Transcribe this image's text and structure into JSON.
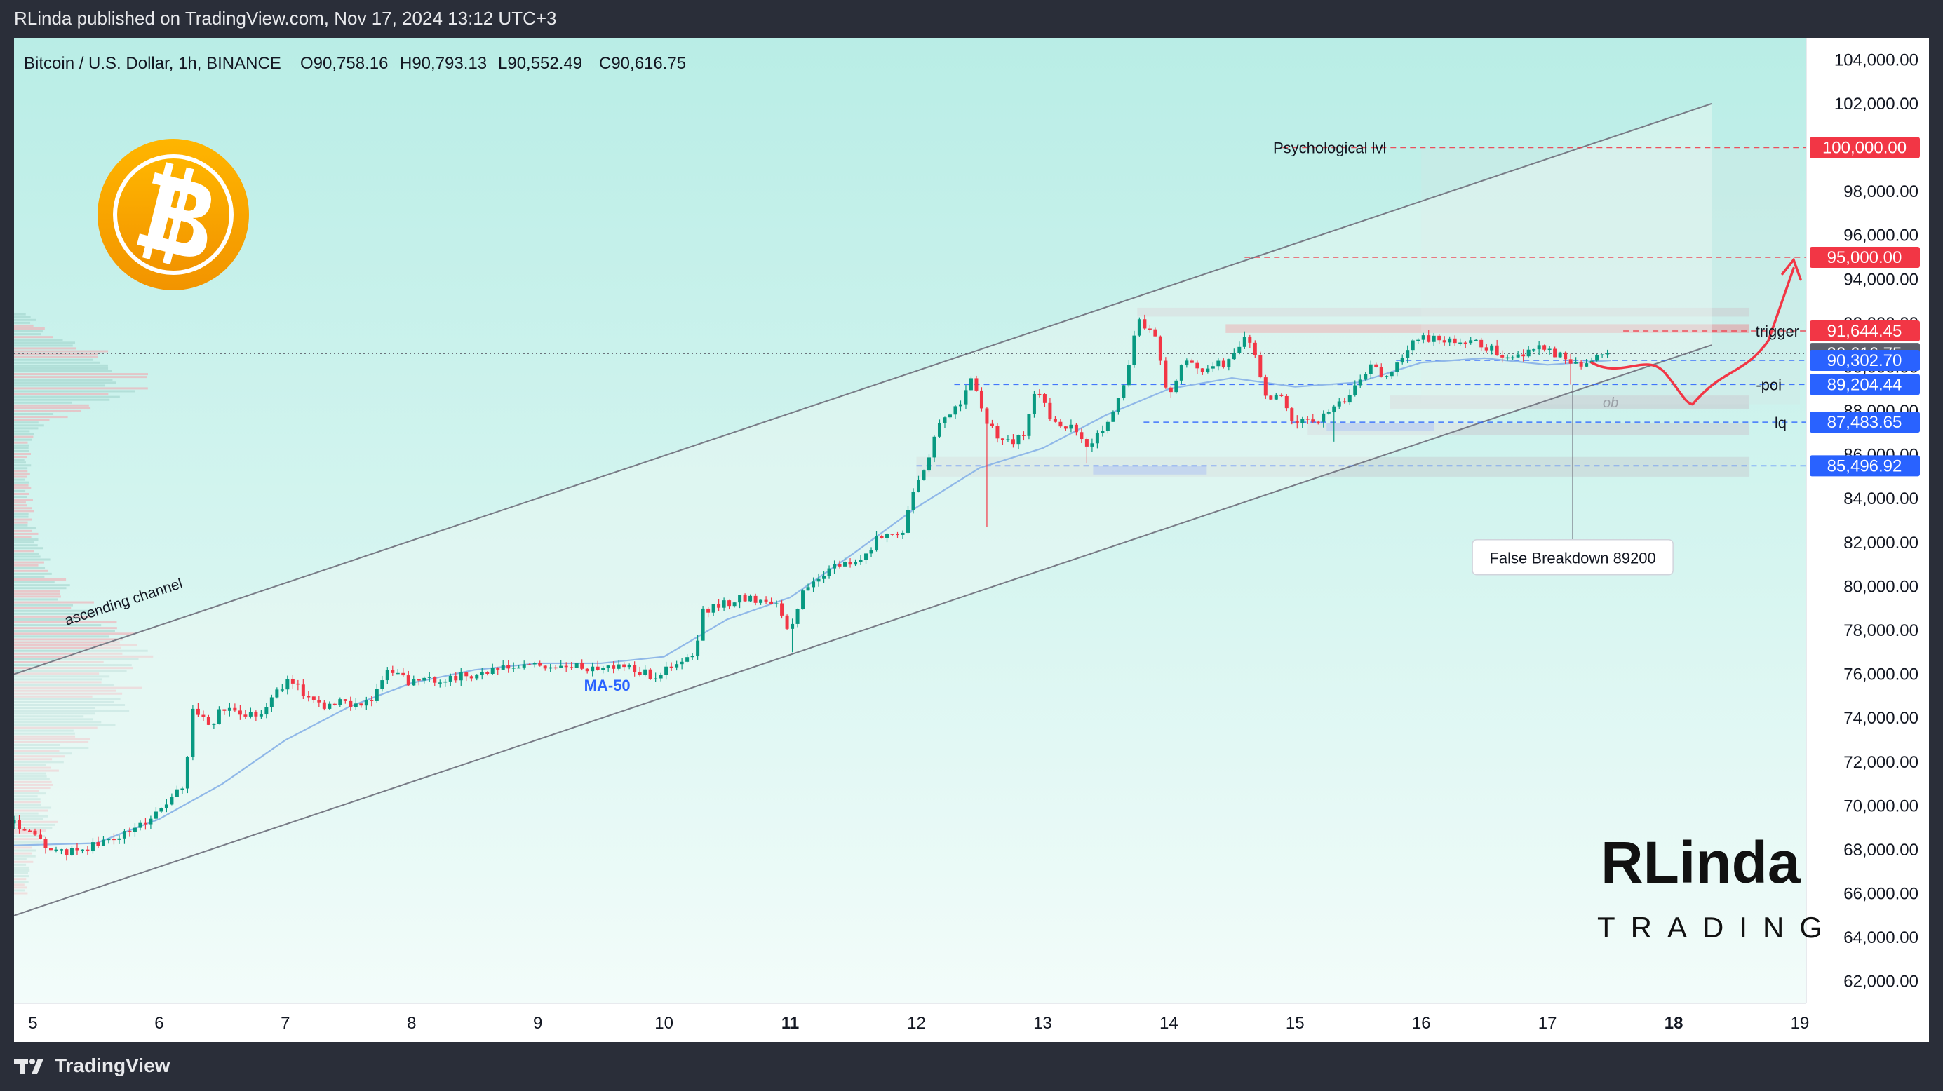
{
  "header": {
    "published": "RLinda published on TradingView.com, Nov 17, 2024 13:12 UTC+3"
  },
  "legend": {
    "symbol": "Bitcoin / U.S. Dollar, 1h, BINANCE",
    "open": "O90,758.16",
    "high": "H90,793.13",
    "low": "L90,552.49",
    "close": "C90,616.75"
  },
  "footer": {
    "brand": "TradingView"
  },
  "watermark": {
    "top": "RLinda",
    "bottom": "TRADING"
  },
  "colors": {
    "up": "#089981",
    "down": "#f23645",
    "ma": "#90b8e8",
    "red_label": "#f23645",
    "blue_label": "#2962ff",
    "gray_label": "#5d606b",
    "bg_top": "#bfeee8",
    "bg_bottom": "#f0fbf8",
    "btc_orange": "#f7a600"
  },
  "chart_data": {
    "type": "candlestick",
    "title": "Bitcoin / U.S. Dollar, 1h, BINANCE",
    "xlabel": "",
    "ylabel": "",
    "x_ticks": [
      "5",
      "6",
      "7",
      "8",
      "9",
      "10",
      "11",
      "12",
      "13",
      "14",
      "15",
      "16",
      "17",
      "18",
      "19"
    ],
    "x_ticks_bold": [
      "11",
      "18"
    ],
    "y_ticks": [
      "62,000.00",
      "64,000.00",
      "66,000.00",
      "68,000.00",
      "70,000.00",
      "72,000.00",
      "74,000.00",
      "76,000.00",
      "78,000.00",
      "80,000.00",
      "82,000.00",
      "84,000.00",
      "86,000.00",
      "88,000.00",
      "90,000.00",
      "92,000.00",
      "94,000.00",
      "96,000.00",
      "98,000.00",
      "100,000.00",
      "102,000.00",
      "104,000.00"
    ],
    "ylim": [
      61000,
      105000
    ],
    "xlim": [
      4.85,
      19.05
    ],
    "grid": false,
    "price_labels": [
      {
        "value": 100000,
        "text": "100,000.00",
        "style": "red"
      },
      {
        "value": 95000,
        "text": "95,000.00",
        "style": "red"
      },
      {
        "value": 91644.45,
        "text": "91,644.45",
        "style": "red"
      },
      {
        "value": 90616.75,
        "text": "90,616.75",
        "style": "gray"
      },
      {
        "value": 90302.7,
        "text": "90,302.70",
        "style": "blue"
      },
      {
        "value": 89204.44,
        "text": "89,204.44",
        "style": "blue"
      },
      {
        "value": 87483.65,
        "text": "87,483.65",
        "style": "blue"
      },
      {
        "value": 85496.92,
        "text": "85,496.92",
        "style": "blue"
      }
    ],
    "annotations": [
      {
        "text": "Psychological lvl",
        "x": 14.9,
        "y": 100000
      },
      {
        "text": "trigger",
        "x": 18.0,
        "y": 91650
      },
      {
        "text": "-poi",
        "x": 18.0,
        "y": 89200
      },
      {
        "text": "lq",
        "x": 17.9,
        "y": 87480
      },
      {
        "text": "ob",
        "x": 17.5,
        "y": 88350
      },
      {
        "text": "ascending channel",
        "x": 5.4,
        "y": 77200
      },
      {
        "text": "MA-50",
        "x": 9.55,
        "y": 75500
      },
      {
        "text": "False Breakdown 89200",
        "x": 17.2,
        "y": 81300
      }
    ],
    "channel": {
      "lower": [
        [
          4.85,
          65000
        ],
        [
          18.3,
          91000
        ]
      ],
      "upper": [
        [
          4.85,
          76000
        ],
        [
          18.3,
          102000
        ]
      ]
    },
    "ma50": [
      [
        4.85,
        68200
      ],
      [
        5.5,
        68300
      ],
      [
        6.0,
        69400
      ],
      [
        6.5,
        71000
      ],
      [
        7.0,
        73000
      ],
      [
        7.5,
        74500
      ],
      [
        8.0,
        75600
      ],
      [
        8.5,
        76200
      ],
      [
        9.0,
        76500
      ],
      [
        9.5,
        76500
      ],
      [
        10.0,
        76800
      ],
      [
        10.5,
        78500
      ],
      [
        11.0,
        79500
      ],
      [
        11.5,
        81500
      ],
      [
        12.0,
        83600
      ],
      [
        12.5,
        85400
      ],
      [
        13.0,
        86300
      ],
      [
        13.5,
        87800
      ],
      [
        14.0,
        89000
      ],
      [
        14.5,
        89500
      ],
      [
        15.0,
        89100
      ],
      [
        15.5,
        89300
      ],
      [
        16.0,
        90200
      ],
      [
        16.5,
        90400
      ],
      [
        17.0,
        90100
      ],
      [
        17.5,
        90300
      ]
    ],
    "ohlc_keypoints": [
      [
        4.85,
        69200
      ],
      [
        5.0,
        68600
      ],
      [
        5.2,
        67800
      ],
      [
        5.5,
        68200
      ],
      [
        5.8,
        68900
      ],
      [
        6.0,
        69800
      ],
      [
        6.1,
        70300
      ],
      [
        6.2,
        71000
      ],
      [
        6.27,
        74600
      ],
      [
        6.4,
        73600
      ],
      [
        6.5,
        74400
      ],
      [
        6.8,
        74200
      ],
      [
        7.0,
        75700
      ],
      [
        7.3,
        74600
      ],
      [
        7.5,
        74700
      ],
      [
        7.7,
        74800
      ],
      [
        7.8,
        76200
      ],
      [
        8.0,
        75600
      ],
      [
        8.5,
        76000
      ],
      [
        8.9,
        76400
      ],
      [
        9.3,
        76300
      ],
      [
        9.7,
        76400
      ],
      [
        9.9,
        75900
      ],
      [
        10.1,
        76400
      ],
      [
        10.25,
        76900
      ],
      [
        10.3,
        78800
      ],
      [
        10.6,
        79500
      ],
      [
        10.9,
        79300
      ],
      [
        11.0,
        77800
      ],
      [
        11.1,
        79800
      ],
      [
        11.3,
        80800
      ],
      [
        11.6,
        81300
      ],
      [
        11.7,
        82300
      ],
      [
        11.9,
        82600
      ],
      [
        12.0,
        84600
      ],
      [
        12.2,
        87500
      ],
      [
        12.3,
        88000
      ],
      [
        12.45,
        89500
      ],
      [
        12.55,
        87500
      ],
      [
        12.7,
        86500
      ],
      [
        12.85,
        86800
      ],
      [
        12.95,
        89200
      ],
      [
        13.05,
        87700
      ],
      [
        13.25,
        87200
      ],
      [
        13.35,
        86200
      ],
      [
        13.5,
        87500
      ],
      [
        13.65,
        89200
      ],
      [
        13.75,
        92300
      ],
      [
        13.9,
        91200
      ],
      [
        14.0,
        88400
      ],
      [
        14.1,
        90200
      ],
      [
        14.25,
        89900
      ],
      [
        14.45,
        90200
      ],
      [
        14.6,
        91300
      ],
      [
        14.7,
        90500
      ],
      [
        14.75,
        88700
      ],
      [
        14.9,
        88600
      ],
      [
        15.0,
        87400
      ],
      [
        15.2,
        87600
      ],
      [
        15.4,
        88600
      ],
      [
        15.6,
        90100
      ],
      [
        15.7,
        89700
      ],
      [
        15.8,
        90000
      ],
      [
        15.9,
        91000
      ],
      [
        16.0,
        91300
      ],
      [
        16.25,
        91100
      ],
      [
        16.5,
        91000
      ],
      [
        16.7,
        90400
      ],
      [
        16.9,
        90900
      ],
      [
        17.1,
        90500
      ],
      [
        17.25,
        90100
      ],
      [
        17.4,
        90600
      ],
      [
        17.5,
        90600
      ]
    ]
  }
}
